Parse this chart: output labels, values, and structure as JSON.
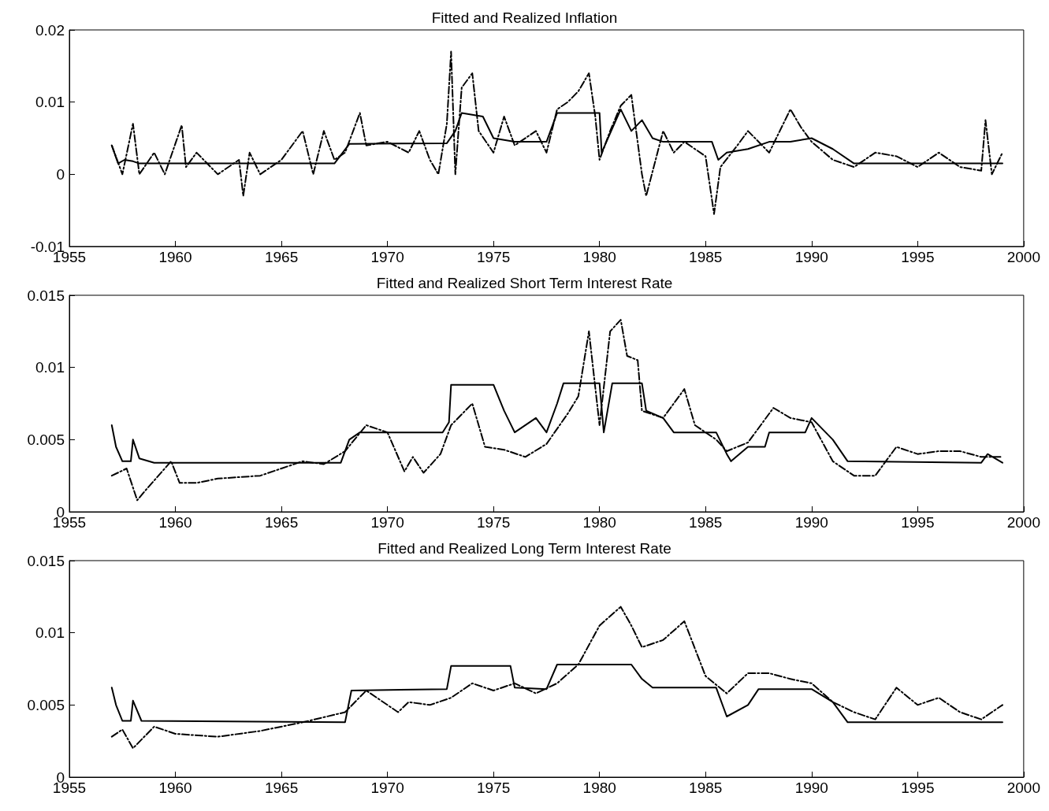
{
  "chart_data": [
    {
      "type": "line",
      "title": "Fitted and Realized Inflation",
      "xlim": [
        1955,
        2000
      ],
      "xticks": [
        1955,
        1960,
        1965,
        1970,
        1975,
        1980,
        1985,
        1990,
        1995,
        2000
      ],
      "ylim": [
        -0.01,
        0.02
      ],
      "yticks": [
        -0.01,
        0,
        0.01,
        0.02
      ],
      "grid": false,
      "marker": "none",
      "series": [
        {
          "color": "#000000",
          "line_style": "solid",
          "x": [
            1957,
            1957.3,
            1957.6,
            1958,
            1958.3,
            1967.5,
            1968.2,
            1972.8,
            1973.2,
            1973.5,
            1974.5,
            1975,
            1976,
            1977.5,
            1978,
            1980,
            1980.1,
            1980.7,
            1981,
            1981.5,
            1982,
            1982.5,
            1983,
            1985.3,
            1985.6,
            1986,
            1987,
            1988,
            1989,
            1990,
            1991,
            1992,
            1999
          ],
          "values": [
            0.004,
            0.0015,
            0.002,
            0.0018,
            0.0015,
            0.0015,
            0.0042,
            0.0043,
            0.006,
            0.0085,
            0.008,
            0.005,
            0.0045,
            0.0045,
            0.0085,
            0.0085,
            0.003,
            0.007,
            0.009,
            0.006,
            0.0075,
            0.005,
            0.0045,
            0.0045,
            0.002,
            0.003,
            0.0035,
            0.0045,
            0.0045,
            0.005,
            0.0035,
            0.0015,
            0.0015
          ]
        },
        {
          "color": "#000000",
          "line_style": "dashdot",
          "x": [
            1957,
            1957.5,
            1958,
            1958.3,
            1959,
            1959.5,
            1960.3,
            1960.5,
            1961,
            1962,
            1963,
            1963.2,
            1963.5,
            1964,
            1965,
            1966,
            1966.5,
            1967,
            1967.5,
            1968,
            1968.7,
            1969,
            1970,
            1971,
            1971.5,
            1972,
            1972.4,
            1972.8,
            1973,
            1973.2,
            1973.5,
            1974,
            1974.3,
            1975,
            1975.5,
            1976,
            1977,
            1977.5,
            1978,
            1978.5,
            1979,
            1979.5,
            1979.8,
            1980,
            1980.5,
            1981,
            1981.5,
            1982,
            1982.2,
            1983,
            1983.5,
            1984,
            1985,
            1985.4,
            1985.7,
            1986.5,
            1987,
            1988,
            1989,
            1989.5,
            1990,
            1991,
            1992,
            1993,
            1994,
            1995,
            1996,
            1997,
            1998,
            1998.2,
            1998.5,
            1999
          ],
          "values": [
            0.004,
            0,
            0.007,
            0,
            0.003,
            0,
            0.0068,
            0.001,
            0.003,
            0,
            0.002,
            -0.003,
            0.003,
            0,
            0.002,
            0.006,
            0,
            0.006,
            0.002,
            0.003,
            0.0085,
            0.004,
            0.0045,
            0.003,
            0.006,
            0.002,
            0,
            0.007,
            0.017,
            0,
            0.012,
            0.014,
            0.006,
            0.003,
            0.008,
            0.004,
            0.006,
            0.003,
            0.009,
            0.01,
            0.0115,
            0.014,
            0.008,
            0.002,
            0.006,
            0.0095,
            0.011,
            0,
            -0.003,
            0.006,
            0.003,
            0.0045,
            0.0025,
            -0.0055,
            0.001,
            0.004,
            0.006,
            0.003,
            0.009,
            0.0065,
            0.0045,
            0.002,
            0.001,
            0.003,
            0.0025,
            0.001,
            0.003,
            0.001,
            0.0005,
            0.0075,
            0,
            0.003
          ]
        }
      ]
    },
    {
      "type": "line",
      "title": "Fitted and Realized Short Term Interest Rate",
      "xlim": [
        1955,
        2000
      ],
      "xticks": [
        1955,
        1960,
        1965,
        1970,
        1975,
        1980,
        1985,
        1990,
        1995,
        2000
      ],
      "ylim": [
        0,
        0.015
      ],
      "yticks": [
        0,
        0.005,
        0.01,
        0.015
      ],
      "grid": false,
      "marker": "none",
      "series": [
        {
          "color": "#000000",
          "line_style": "solid",
          "x": [
            1957,
            1957.2,
            1957.5,
            1957.9,
            1958,
            1958.3,
            1959,
            1967.8,
            1968.2,
            1968.7,
            1972.6,
            1972.9,
            1973,
            1975,
            1975.5,
            1976,
            1977,
            1977.5,
            1978,
            1978.3,
            1980,
            1980.2,
            1980.6,
            1982,
            1982.2,
            1983,
            1983.5,
            1985.5,
            1986,
            1986.2,
            1987,
            1987.8,
            1988,
            1989.7,
            1990,
            1991,
            1991.7,
            1998,
            1998.3,
            1999
          ],
          "values": [
            0.006,
            0.0045,
            0.0035,
            0.0035,
            0.005,
            0.0037,
            0.0034,
            0.0034,
            0.005,
            0.0055,
            0.0055,
            0.0062,
            0.0088,
            0.0088,
            0.007,
            0.0055,
            0.0065,
            0.0055,
            0.0075,
            0.0089,
            0.0089,
            0.0055,
            0.0089,
            0.0089,
            0.007,
            0.0065,
            0.0055,
            0.0055,
            0.004,
            0.0035,
            0.0045,
            0.0045,
            0.0055,
            0.0055,
            0.0065,
            0.005,
            0.0035,
            0.0034,
            0.004,
            0.0034
          ]
        },
        {
          "color": "#000000",
          "line_style": "dashdot",
          "x": [
            1957,
            1957.7,
            1958.2,
            1958.6,
            1959.5,
            1959.8,
            1960.2,
            1961,
            1962,
            1964,
            1965,
            1966,
            1967,
            1968,
            1969,
            1970,
            1970.8,
            1971.2,
            1971.7,
            1972.5,
            1973,
            1974,
            1974.6,
            1975.5,
            1976.5,
            1977.5,
            1978.5,
            1979,
            1979.5,
            1980,
            1980.5,
            1981,
            1981.3,
            1981.8,
            1982,
            1983,
            1984,
            1984.5,
            1985.5,
            1986,
            1987,
            1988.2,
            1989,
            1990,
            1991,
            1992,
            1993,
            1994,
            1995,
            1996,
            1997,
            1998,
            1999
          ],
          "values": [
            0.0025,
            0.003,
            0.0008,
            0.0015,
            0.003,
            0.0035,
            0.002,
            0.002,
            0.0023,
            0.0025,
            0.003,
            0.0035,
            0.0033,
            0.0042,
            0.006,
            0.0055,
            0.0028,
            0.0038,
            0.0027,
            0.004,
            0.006,
            0.0075,
            0.0045,
            0.0043,
            0.0038,
            0.0047,
            0.0068,
            0.008,
            0.0125,
            0.006,
            0.0125,
            0.0133,
            0.0108,
            0.0105,
            0.007,
            0.0065,
            0.0085,
            0.006,
            0.005,
            0.0042,
            0.0048,
            0.0072,
            0.0065,
            0.0062,
            0.0035,
            0.0025,
            0.0025,
            0.0045,
            0.004,
            0.0042,
            0.0042,
            0.0038,
            0.0038
          ]
        }
      ]
    },
    {
      "type": "line",
      "title": "Fitted and Realized Long Term Interest Rate",
      "xlim": [
        1955,
        2000
      ],
      "xticks": [
        1955,
        1960,
        1965,
        1970,
        1975,
        1980,
        1985,
        1990,
        1995,
        2000
      ],
      "ylim": [
        0,
        0.015
      ],
      "yticks": [
        0,
        0.005,
        0.01,
        0.015
      ],
      "grid": false,
      "marker": "none",
      "series": [
        {
          "color": "#000000",
          "line_style": "solid",
          "x": [
            1957,
            1957.2,
            1957.5,
            1957.9,
            1958,
            1958.4,
            1968,
            1968.3,
            1972.8,
            1973,
            1975.8,
            1976,
            1977.5,
            1978,
            1981.5,
            1982,
            1982.5,
            1985.5,
            1986,
            1987,
            1987.5,
            1990,
            1991,
            1991.7,
            1998.5,
            1999
          ],
          "values": [
            0.0062,
            0.005,
            0.0039,
            0.0039,
            0.0053,
            0.0039,
            0.0038,
            0.006,
            0.0061,
            0.0077,
            0.0077,
            0.0062,
            0.0061,
            0.0078,
            0.0078,
            0.0068,
            0.0062,
            0.0062,
            0.0042,
            0.005,
            0.0061,
            0.0061,
            0.0052,
            0.0038,
            0.0038,
            0.0038
          ]
        },
        {
          "color": "#000000",
          "line_style": "dashdot",
          "x": [
            1957,
            1957.5,
            1958,
            1959,
            1960,
            1962,
            1964,
            1966,
            1968,
            1969,
            1970.5,
            1971,
            1972,
            1973,
            1974,
            1975,
            1976,
            1977,
            1978,
            1979,
            1980,
            1981,
            1981.5,
            1982,
            1983,
            1984,
            1985,
            1986,
            1987,
            1988,
            1989,
            1990,
            1991,
            1992,
            1993,
            1994,
            1995,
            1996,
            1997,
            1998,
            1999
          ],
          "values": [
            0.0028,
            0.0033,
            0.002,
            0.0035,
            0.003,
            0.0028,
            0.0032,
            0.0038,
            0.0045,
            0.006,
            0.0045,
            0.0052,
            0.005,
            0.0055,
            0.0065,
            0.006,
            0.0065,
            0.0058,
            0.0065,
            0.0078,
            0.0105,
            0.0118,
            0.0105,
            0.009,
            0.0095,
            0.0108,
            0.007,
            0.0058,
            0.0072,
            0.0072,
            0.0068,
            0.0065,
            0.0052,
            0.0045,
            0.004,
            0.0062,
            0.005,
            0.0055,
            0.0045,
            0.004,
            0.005
          ]
        }
      ]
    }
  ]
}
